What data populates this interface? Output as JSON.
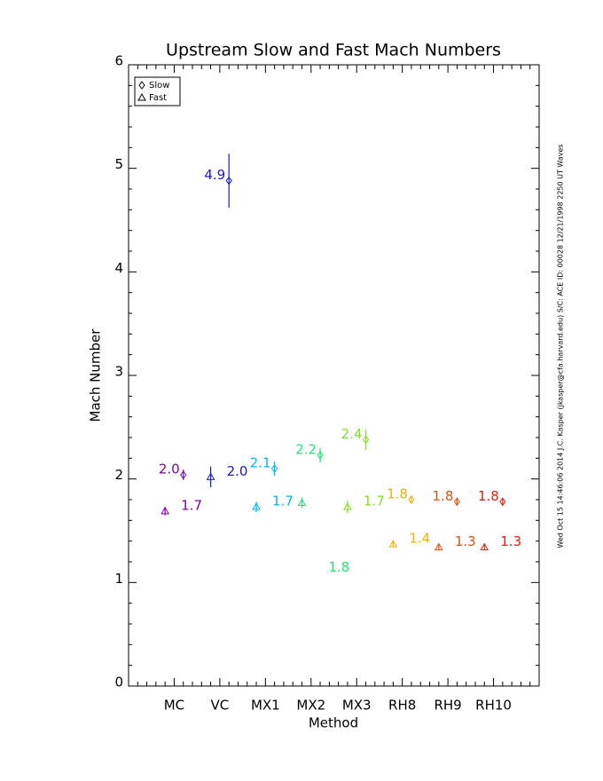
{
  "chart_data": {
    "type": "errorbar",
    "title": "Upstream Slow and Fast Mach Numbers",
    "x_label": "Method",
    "y_label": "Mach Number",
    "side_note": "Wed Oct 15 14:46:06 2014   J.C. Kasper (jkasper@cfa.harvard.edu)   S/C: ACE ID: 00028 12/21/1998   2250 UT Waves",
    "categories": [
      "MC",
      "VC",
      "MX1",
      "MX2",
      "MX3",
      "RH8",
      "RH9",
      "RH10"
    ],
    "colors": [
      "#7a00a8",
      "#1818d0",
      "#00b8e8",
      "#20e078",
      "#80e020",
      "#f0b000",
      "#e05010",
      "#e02010"
    ],
    "xlim": [
      0,
      9
    ],
    "ylim": [
      0,
      6
    ],
    "yticks": [
      0,
      1,
      2,
      3,
      4,
      5,
      6
    ],
    "legend_position": "upper left",
    "series": [
      {
        "name": "Slow",
        "marker": "diamond",
        "values": [
          2.04,
          4.88,
          2.1,
          2.23,
          2.38,
          1.8,
          1.78,
          1.78
        ],
        "errors": [
          0.05,
          0.26,
          0.07,
          0.07,
          0.1,
          0.04,
          0.04,
          0.04
        ],
        "value_labels": [
          "2.0",
          "4.9",
          "2.1",
          "2.2",
          "2.4",
          "1.8",
          "1.8",
          "1.8"
        ]
      },
      {
        "name": "Fast",
        "marker": "triangle",
        "values": [
          1.69,
          2.02,
          1.73,
          1.77,
          1.73,
          1.37,
          1.34,
          1.34
        ],
        "errors": [
          0.04,
          0.1,
          0.05,
          0.05,
          0.06,
          0.03,
          0.03,
          0.03
        ],
        "value_labels": [
          "1.7",
          "2.0",
          "1.7",
          "1.8",
          "1.7",
          "1.4",
          "1.3",
          "1.3"
        ]
      }
    ]
  }
}
